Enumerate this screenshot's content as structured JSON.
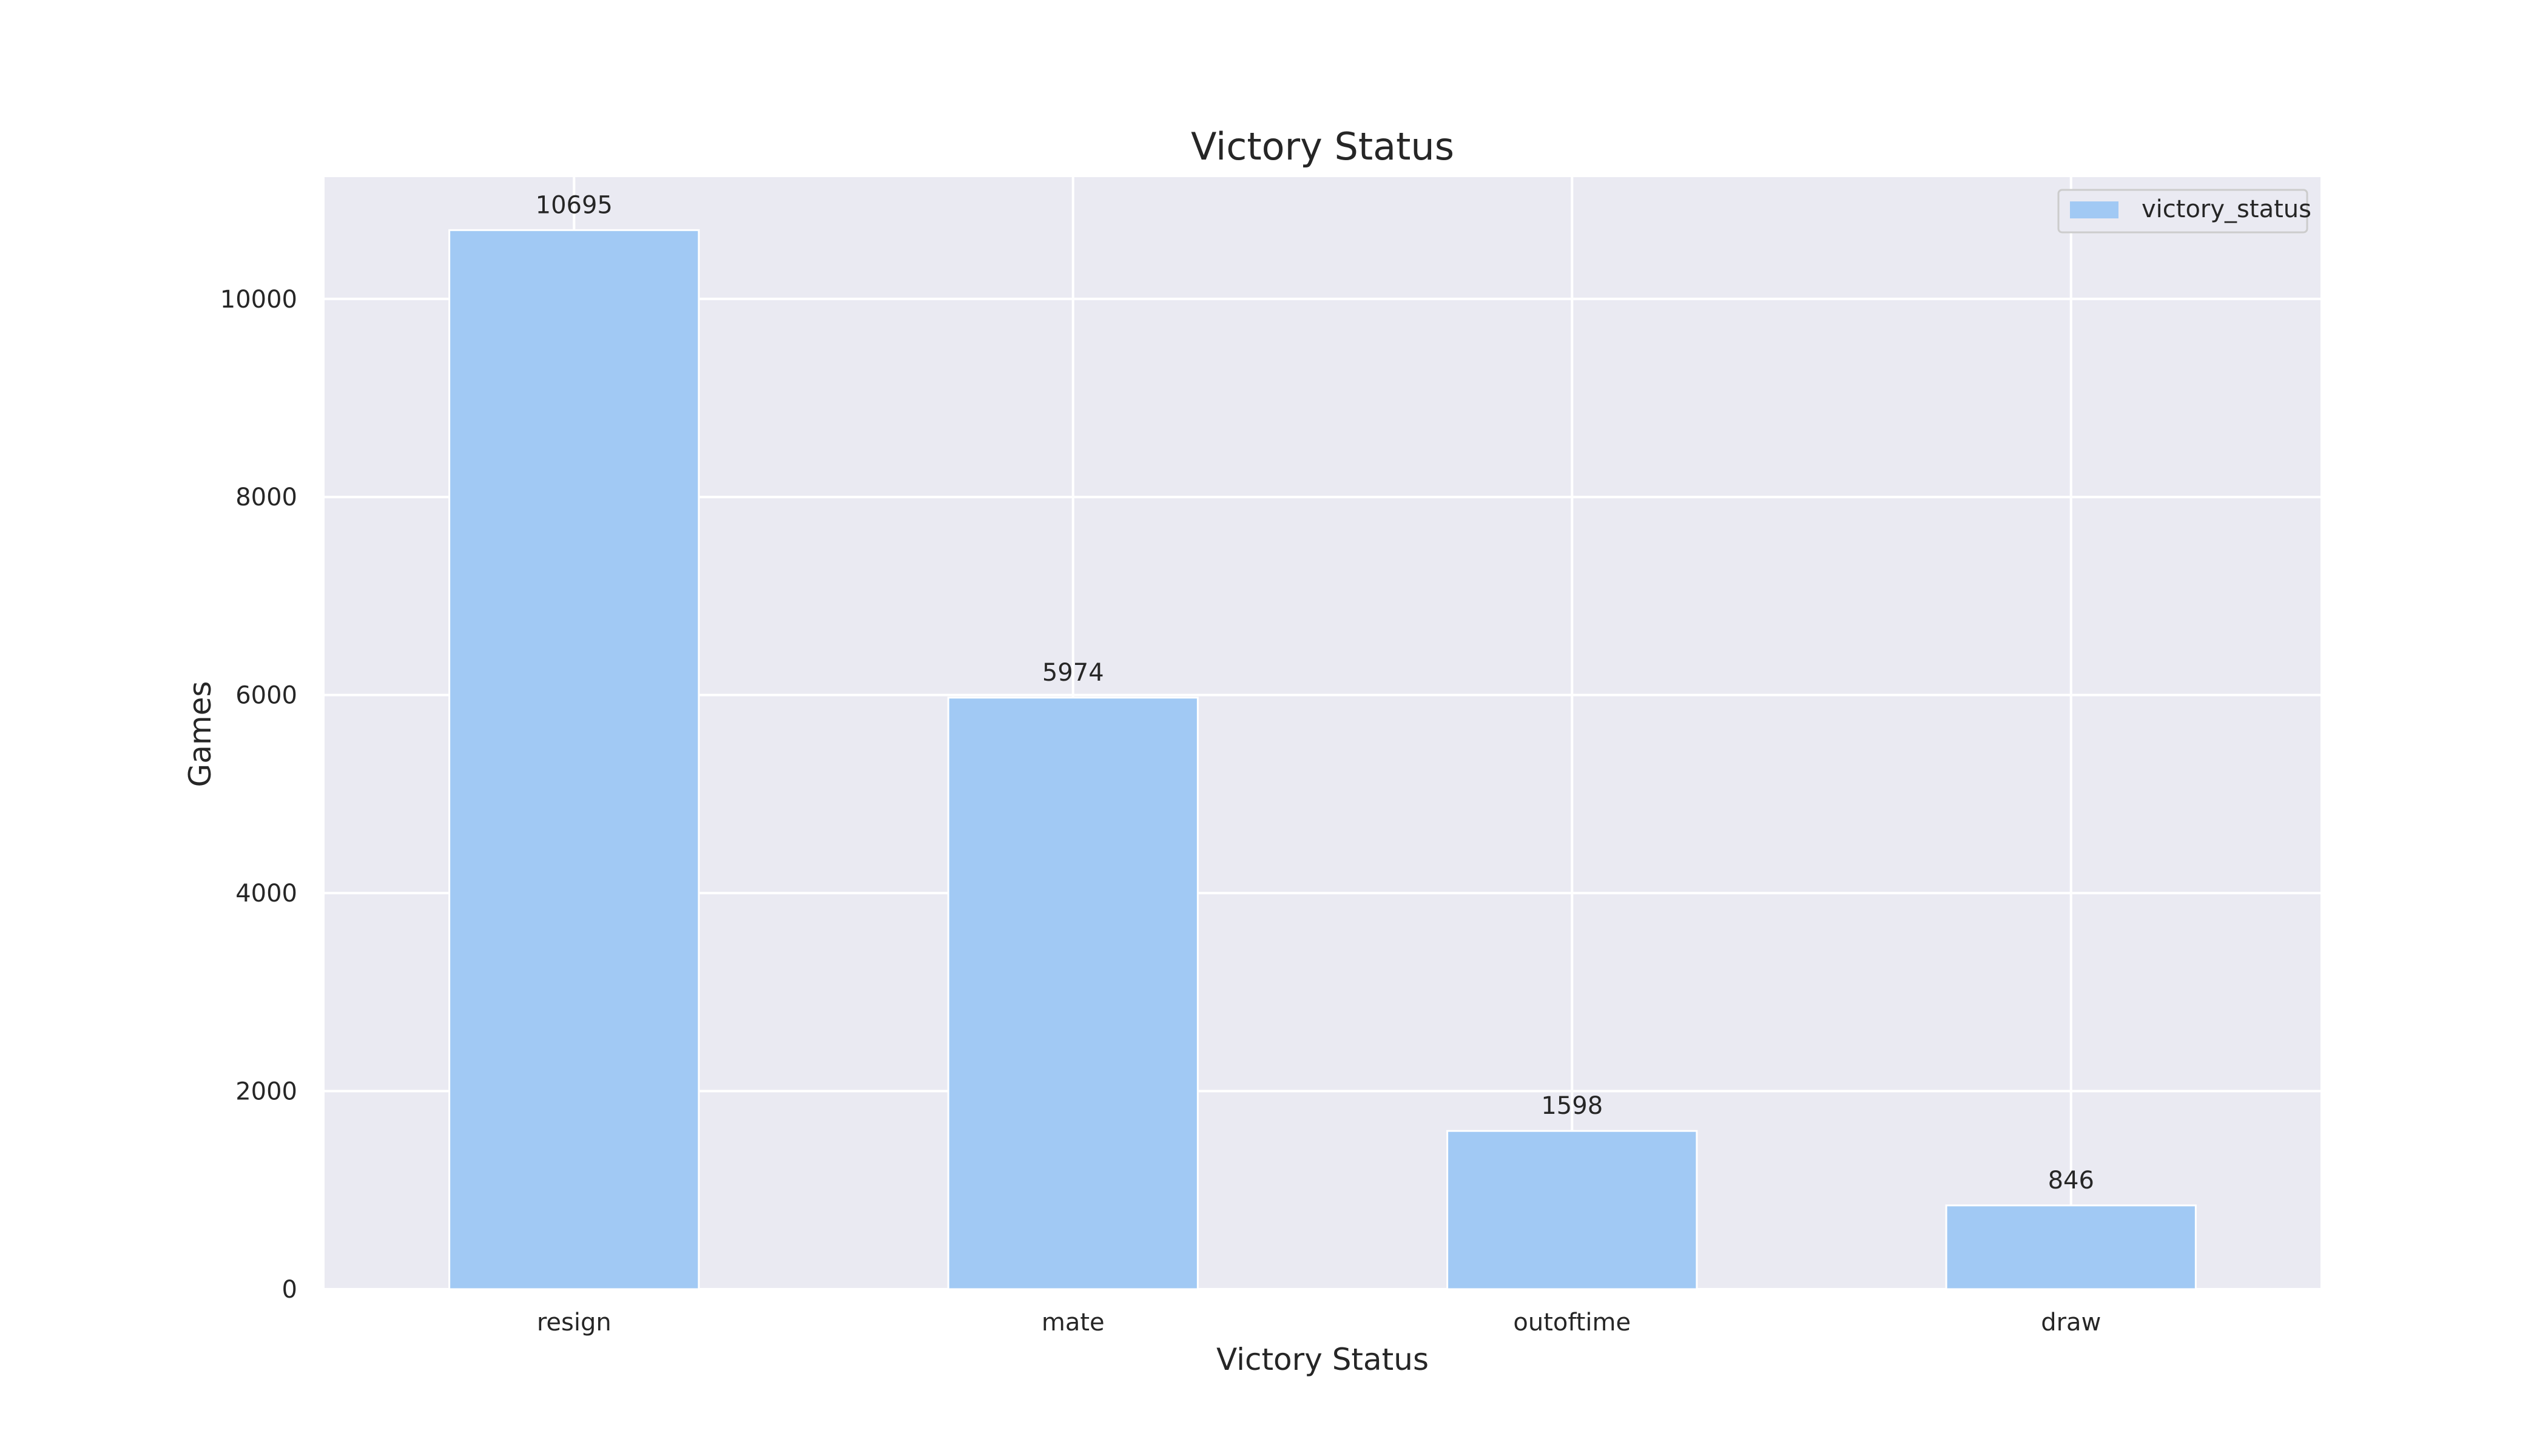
{
  "chart_data": {
    "type": "bar",
    "title": "Victory Status",
    "xlabel": "Victory Status",
    "ylabel": "Games",
    "categories": [
      "resign",
      "mate",
      "outoftime",
      "draw"
    ],
    "series": [
      {
        "name": "victory_status",
        "values": [
          10695,
          5974,
          1598,
          846
        ]
      }
    ],
    "data_labels": [
      "10695",
      "5974",
      "1598",
      "846"
    ],
    "yticks": [
      0,
      2000,
      4000,
      6000,
      8000,
      10000
    ],
    "ylim": [
      0,
      11230
    ],
    "grid": true,
    "legend_position": "top-right",
    "colors": {
      "bar": "#a1c9f4",
      "plot_background": "#eaeaf2",
      "grid": "#ffffff",
      "text": "#262626"
    }
  }
}
